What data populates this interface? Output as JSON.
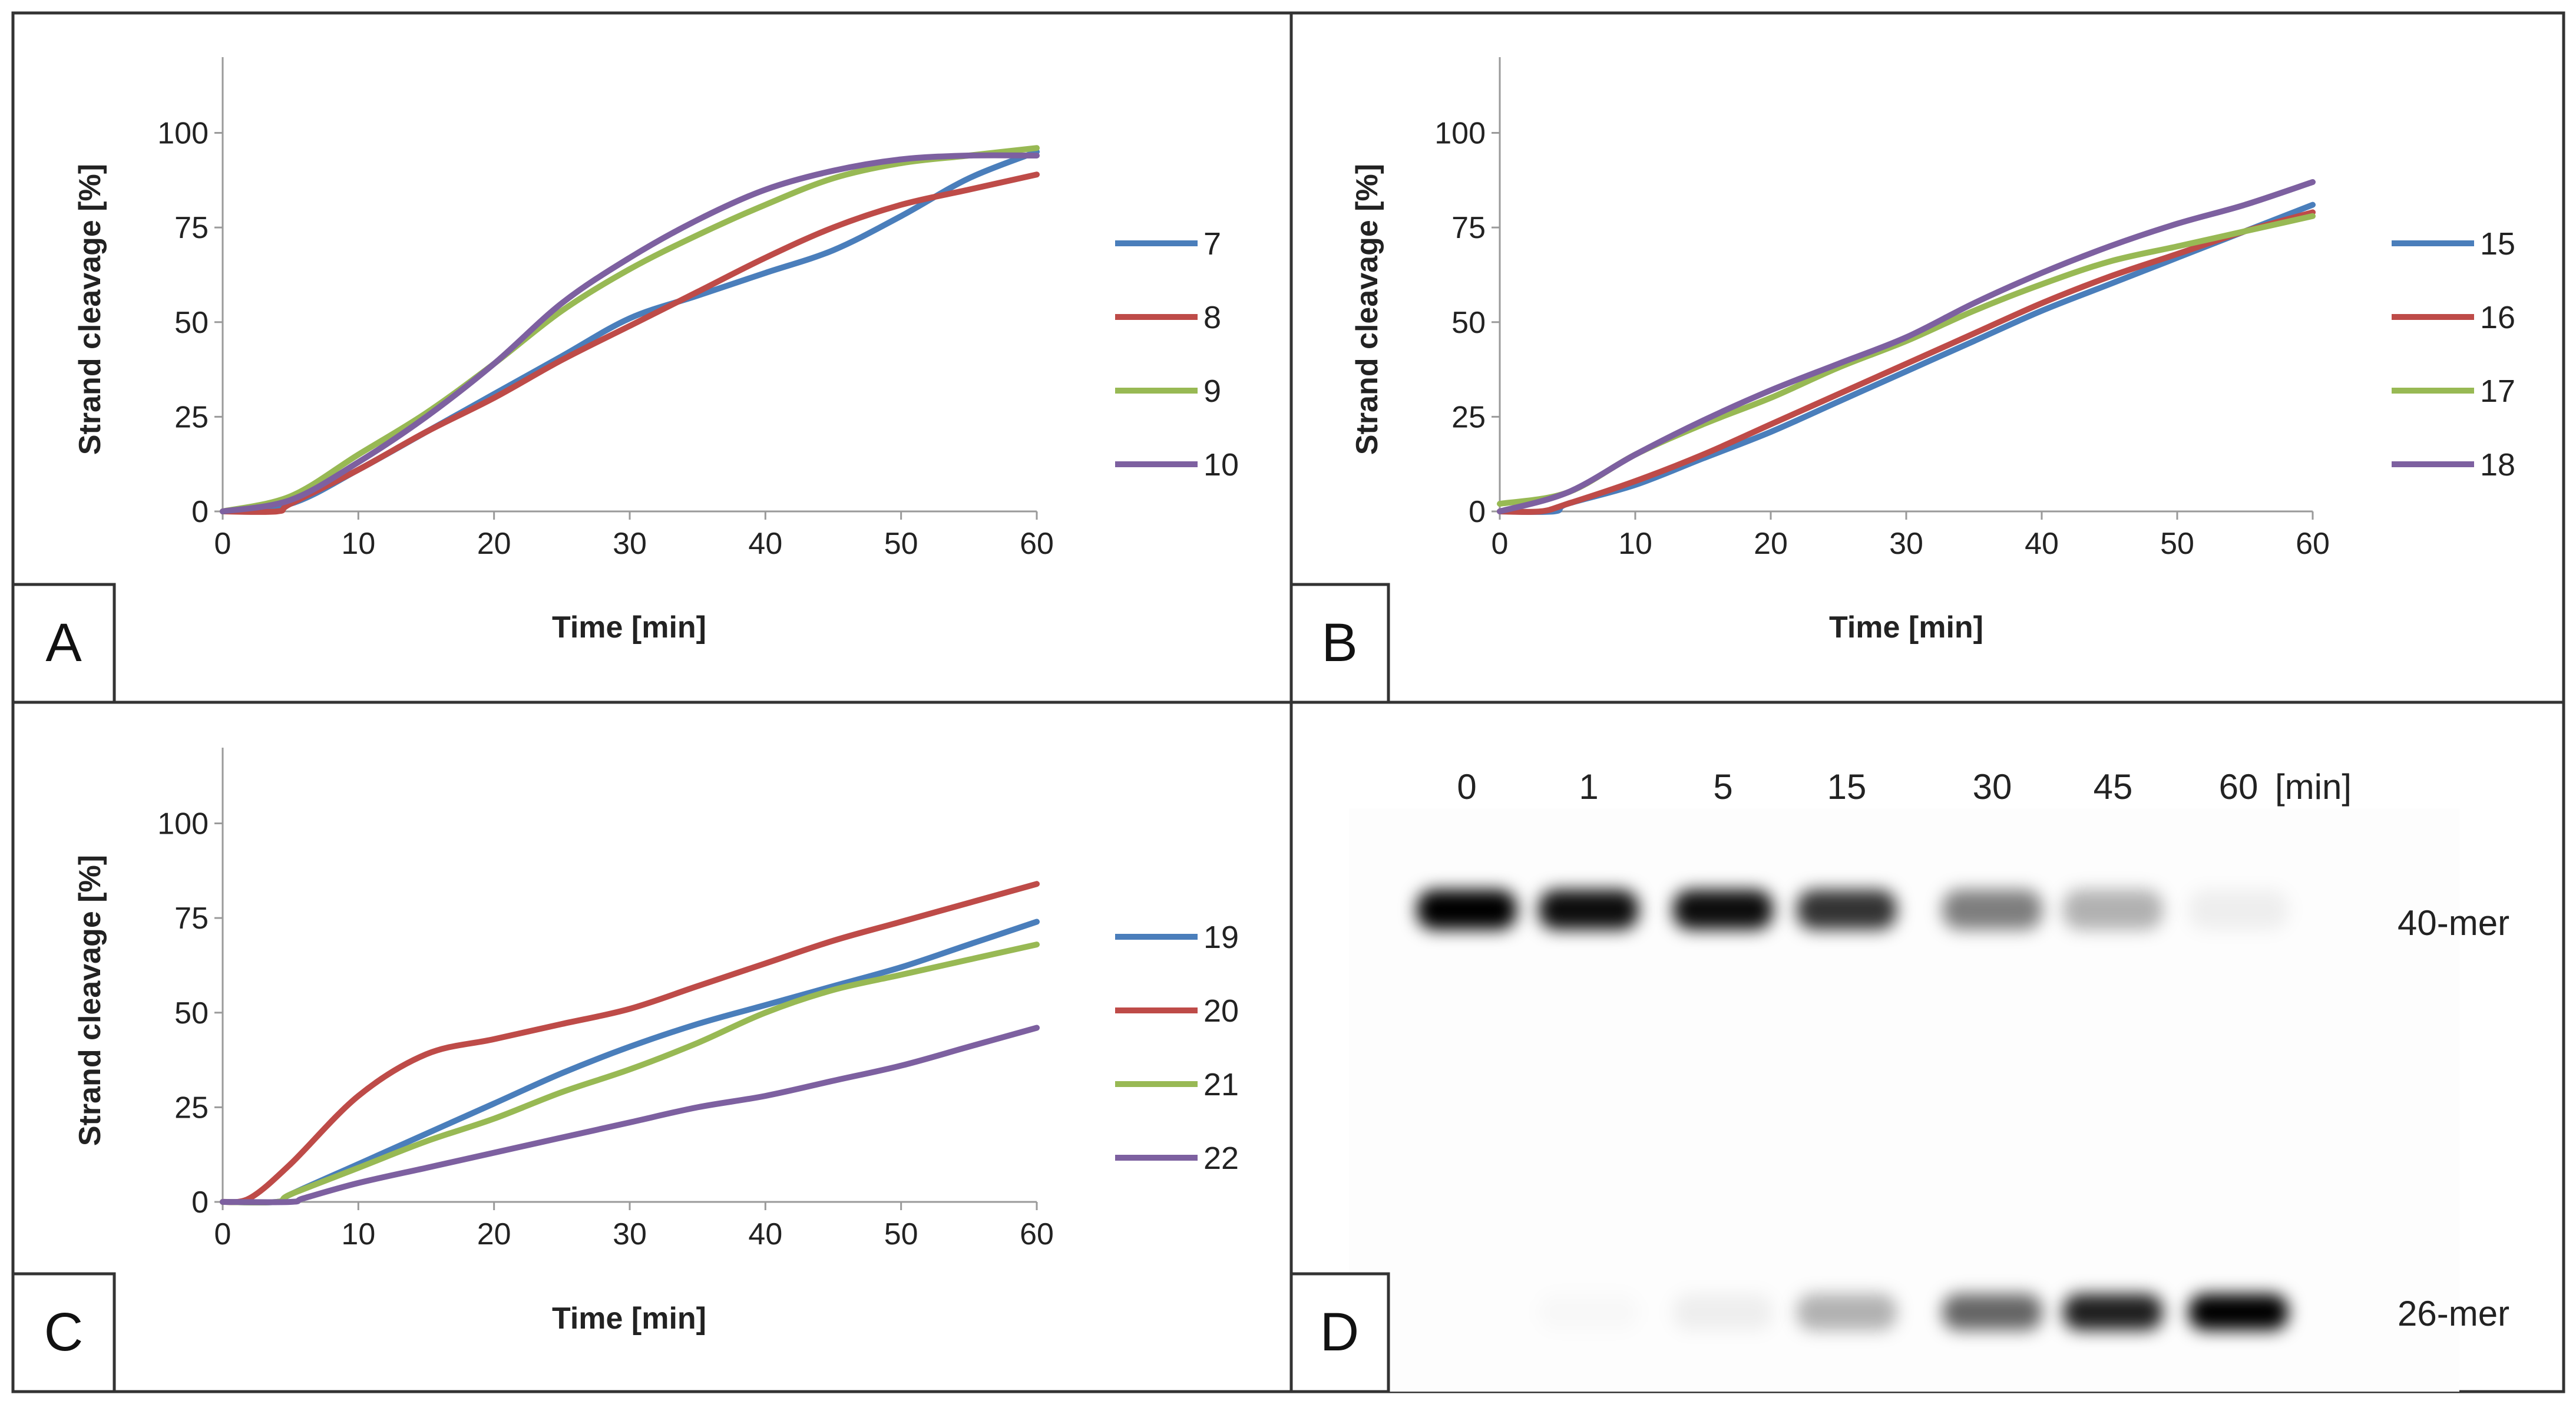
{
  "figure": {
    "colors": {
      "blue": "#4a7ebb",
      "red": "#be4b48",
      "green": "#98b954",
      "purple": "#7d60a0"
    }
  },
  "chart_data": [
    {
      "type": "line",
      "panel": "A",
      "xlabel": "Time [min]",
      "ylabel": "Strand cleavage [%]",
      "xlim": [
        0,
        60
      ],
      "ylim": [
        0,
        120
      ],
      "xticks": [
        0,
        10,
        20,
        30,
        40,
        50,
        60
      ],
      "yticks": [
        0,
        25,
        50,
        75,
        100
      ],
      "legend_position": "right",
      "series": [
        {
          "name": "7",
          "color": "#4a7ebb",
          "x": [
            0,
            5,
            10,
            15,
            20,
            25,
            30,
            35,
            40,
            45,
            50,
            55,
            60
          ],
          "y": [
            0,
            2,
            11,
            21,
            31,
            41,
            51,
            57,
            63,
            69,
            78,
            88,
            95
          ]
        },
        {
          "name": "8",
          "color": "#be4b48",
          "x": [
            0,
            4,
            5,
            10,
            15,
            20,
            25,
            30,
            35,
            40,
            45,
            50,
            55,
            60
          ],
          "y": [
            0,
            0,
            2,
            11,
            21,
            30,
            40,
            49,
            58,
            67,
            75,
            81,
            85,
            89
          ]
        },
        {
          "name": "9",
          "color": "#98b954",
          "x": [
            0,
            5,
            10,
            15,
            20,
            25,
            30,
            35,
            40,
            45,
            50,
            55,
            60
          ],
          "y": [
            0,
            4,
            15,
            26,
            39,
            53,
            64,
            73,
            81,
            88,
            92,
            94,
            96
          ]
        },
        {
          "name": "10",
          "color": "#7d60a0",
          "x": [
            0,
            5,
            10,
            15,
            20,
            25,
            30,
            35,
            40,
            45,
            50,
            55,
            60
          ],
          "y": [
            0,
            3,
            13,
            25,
            39,
            55,
            67,
            77,
            85,
            90,
            93,
            94,
            94
          ]
        }
      ]
    },
    {
      "type": "line",
      "panel": "B",
      "xlabel": "Time [min]",
      "ylabel": "Strand cleavage [%]",
      "xlim": [
        0,
        60
      ],
      "ylim": [
        0,
        120
      ],
      "xticks": [
        0,
        10,
        20,
        30,
        40,
        50,
        60
      ],
      "yticks": [
        0,
        25,
        50,
        75,
        100
      ],
      "legend_position": "right",
      "series": [
        {
          "name": "15",
          "color": "#4a7ebb",
          "x": [
            0,
            4,
            5,
            10,
            15,
            20,
            25,
            30,
            35,
            40,
            45,
            50,
            55,
            60
          ],
          "y": [
            0,
            0,
            2,
            7,
            14,
            21,
            29,
            37,
            45,
            53,
            60,
            67,
            74,
            81
          ]
        },
        {
          "name": "16",
          "color": "#be4b48",
          "x": [
            0,
            3,
            5,
            10,
            15,
            20,
            25,
            30,
            35,
            40,
            45,
            50,
            55,
            60
          ],
          "y": [
            0,
            0,
            2,
            8,
            15,
            23,
            31,
            39,
            47,
            55,
            62,
            68,
            74,
            79
          ]
        },
        {
          "name": "17",
          "color": "#98b954",
          "x": [
            0,
            5,
            10,
            15,
            20,
            25,
            30,
            35,
            40,
            45,
            50,
            55,
            60
          ],
          "y": [
            2,
            5,
            15,
            23,
            30,
            38,
            45,
            53,
            60,
            66,
            70,
            74,
            78
          ]
        },
        {
          "name": "18",
          "color": "#7d60a0",
          "x": [
            0,
            5,
            10,
            15,
            20,
            25,
            30,
            35,
            40,
            45,
            50,
            55,
            60
          ],
          "y": [
            0,
            5,
            15,
            24,
            32,
            39,
            46,
            55,
            63,
            70,
            76,
            81,
            87
          ]
        }
      ]
    },
    {
      "type": "line",
      "panel": "C",
      "xlabel": "Time [min]",
      "ylabel": "Strand cleavage [%]",
      "xlim": [
        0,
        60
      ],
      "ylim": [
        0,
        120
      ],
      "xticks": [
        0,
        10,
        20,
        30,
        40,
        50,
        60
      ],
      "yticks": [
        0,
        25,
        50,
        75,
        100
      ],
      "legend_position": "right",
      "series": [
        {
          "name": "19",
          "color": "#4a7ebb",
          "x": [
            0,
            4,
            5,
            10,
            15,
            20,
            25,
            30,
            35,
            40,
            45,
            50,
            55,
            60
          ],
          "y": [
            0,
            0,
            2,
            10,
            18,
            26,
            34,
            41,
            47,
            52,
            57,
            62,
            68,
            74
          ]
        },
        {
          "name": "20",
          "color": "#be4b48",
          "x": [
            0,
            2,
            5,
            10,
            15,
            20,
            25,
            30,
            35,
            40,
            45,
            50,
            55,
            60
          ],
          "y": [
            0,
            1,
            10,
            28,
            39,
            43,
            47,
            51,
            57,
            63,
            69,
            74,
            79,
            84
          ]
        },
        {
          "name": "21",
          "color": "#98b954",
          "x": [
            0,
            4,
            5,
            10,
            15,
            20,
            25,
            30,
            35,
            40,
            45,
            50,
            55,
            60
          ],
          "y": [
            0,
            0,
            2,
            9,
            16,
            22,
            29,
            35,
            42,
            50,
            56,
            60,
            64,
            68
          ]
        },
        {
          "name": "22",
          "color": "#7d60a0",
          "x": [
            0,
            5,
            6,
            10,
            15,
            20,
            25,
            30,
            35,
            40,
            45,
            50,
            55,
            60
          ],
          "y": [
            0,
            0,
            1,
            5,
            9,
            13,
            17,
            21,
            25,
            28,
            32,
            36,
            41,
            46
          ]
        }
      ]
    }
  ],
  "panels": {
    "a": {
      "letter": "A"
    },
    "b": {
      "letter": "B"
    },
    "c": {
      "letter": "C"
    },
    "d": {
      "letter": "D"
    }
  },
  "gel": {
    "time_labels": [
      "0",
      "1",
      "5",
      "15",
      "30",
      "45",
      "60"
    ],
    "unit_label": "[min]",
    "band_labels": {
      "upper": "40-mer",
      "lower": "26-mer"
    },
    "upper_band_intensity": [
      1.0,
      0.95,
      0.95,
      0.8,
      0.5,
      0.3,
      0.06
    ],
    "lower_band_intensity": [
      0.0,
      0.02,
      0.06,
      0.3,
      0.6,
      0.88,
      1.0
    ]
  }
}
